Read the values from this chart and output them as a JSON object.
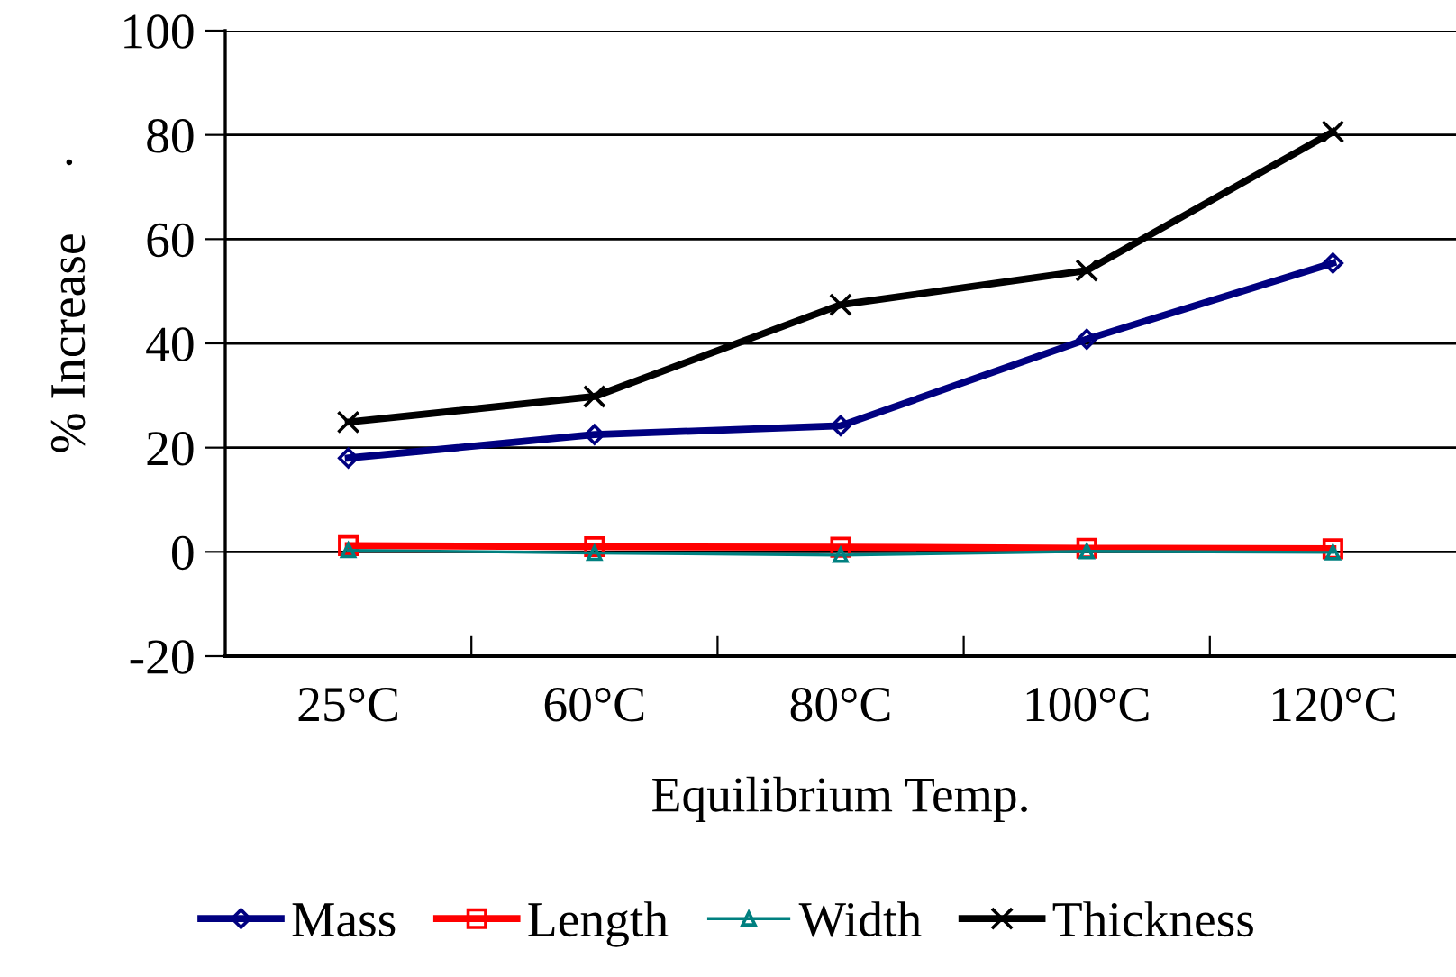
{
  "chart_data": {
    "type": "line",
    "xlabel": "Equilibrium Temp.",
    "ylabel": "% Increase",
    "annotations": [
      "."
    ],
    "categories": [
      "25°C",
      "60°C",
      "80°C",
      "100°C",
      "120°C"
    ],
    "series": [
      {
        "name": "Mass",
        "color": "#000080",
        "marker": "diamond",
        "values": [
          18,
          22.5,
          24.2,
          40.8,
          55.4
        ]
      },
      {
        "name": "Length",
        "color": "#ff0000",
        "marker": "square",
        "values": [
          1.2,
          1.0,
          0.9,
          0.7,
          0.6
        ]
      },
      {
        "name": "Width",
        "color": "#008080",
        "marker": "triangle",
        "values": [
          0.3,
          -0.2,
          -0.6,
          0.1,
          -0.1
        ]
      },
      {
        "name": "Thickness",
        "color": "#000000",
        "marker": "cross",
        "values": [
          24.9,
          29.8,
          47.4,
          54,
          80.6
        ]
      }
    ],
    "ylim": [
      -20,
      100
    ],
    "yticks": [
      -20,
      0,
      20,
      40,
      60,
      80,
      100
    ],
    "grid": "y",
    "legend": "bottom",
    "line_style": "solid"
  }
}
